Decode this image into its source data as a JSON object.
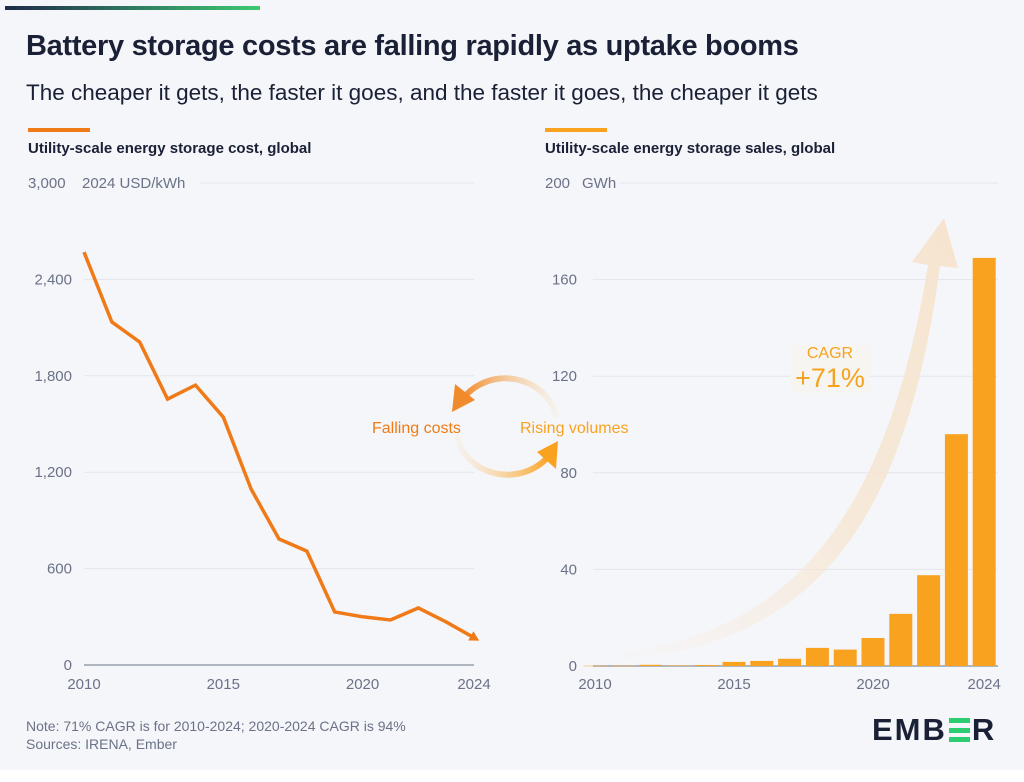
{
  "header": {
    "title": "Battery storage costs are falling rapidly as uptake booms",
    "subtitle": "The cheaper it gets, the faster it goes, and the faster it goes, the cheaper it gets"
  },
  "colors": {
    "cost_line": "#f07a17",
    "sales_bar": "#f9a21f",
    "background": "#f5f6fa",
    "text_dark": "#1a2035",
    "text_muted": "#6b7287",
    "brand_green": "#2ecc71"
  },
  "annotations": {
    "cycle_left": "Falling costs",
    "cycle_right": "Rising volumes",
    "cagr_label": "CAGR",
    "cagr_value": "+71%"
  },
  "footer": {
    "note": "Note: 71% CAGR is for 2010-2024; 2020-2024 CAGR is 94%",
    "sources": "Sources: IRENA, Ember",
    "logo_prefix": "EMB",
    "logo_suffix": "R"
  },
  "chart_data": [
    {
      "type": "line",
      "title": "Utility-scale energy storage cost, global",
      "ylabel": "2024 USD/kWh",
      "xlabel": "",
      "x": [
        2010,
        2011,
        2012,
        2013,
        2014,
        2015,
        2016,
        2017,
        2018,
        2019,
        2020,
        2021,
        2022,
        2023,
        2024
      ],
      "values": [
        2570,
        2135,
        2010,
        1655,
        1742,
        1543,
        1095,
        784,
        709,
        330,
        300,
        280,
        355,
        268,
        170
      ],
      "ylim": [
        0,
        3000
      ],
      "yticks": [
        0,
        600,
        1200,
        1800,
        2400,
        3000
      ],
      "ytick_labels": [
        "0",
        "600",
        "1,200",
        "1,800",
        "2,400",
        "3,000"
      ],
      "xlim": [
        2010,
        2024
      ],
      "xticks": [
        2010,
        2015,
        2020,
        2024
      ],
      "xtick_labels": [
        "2010",
        "2015",
        "2020",
        "2024"
      ],
      "grid": true,
      "end_marker": "arrow"
    },
    {
      "type": "bar",
      "title": "Utility-scale energy storage sales, global",
      "ylabel": "GWh",
      "xlabel": "",
      "categories": [
        2010,
        2011,
        2012,
        2013,
        2014,
        2015,
        2016,
        2017,
        2018,
        2019,
        2020,
        2021,
        2022,
        2023,
        2024
      ],
      "values": [
        0.1,
        0.1,
        0.5,
        0.2,
        0.4,
        1.7,
        2.1,
        3.0,
        7.5,
        6.8,
        11.6,
        21.6,
        37.6,
        96,
        169
      ],
      "ylim": [
        0,
        200
      ],
      "yticks": [
        0,
        40,
        80,
        120,
        160,
        200
      ],
      "ytick_labels": [
        "0",
        "40",
        "80",
        "120",
        "160",
        "200"
      ],
      "xticks": [
        2010,
        2015,
        2020,
        2024
      ],
      "xtick_labels": [
        "2010",
        "2015",
        "2020",
        "2024"
      ],
      "grid": true
    }
  ]
}
